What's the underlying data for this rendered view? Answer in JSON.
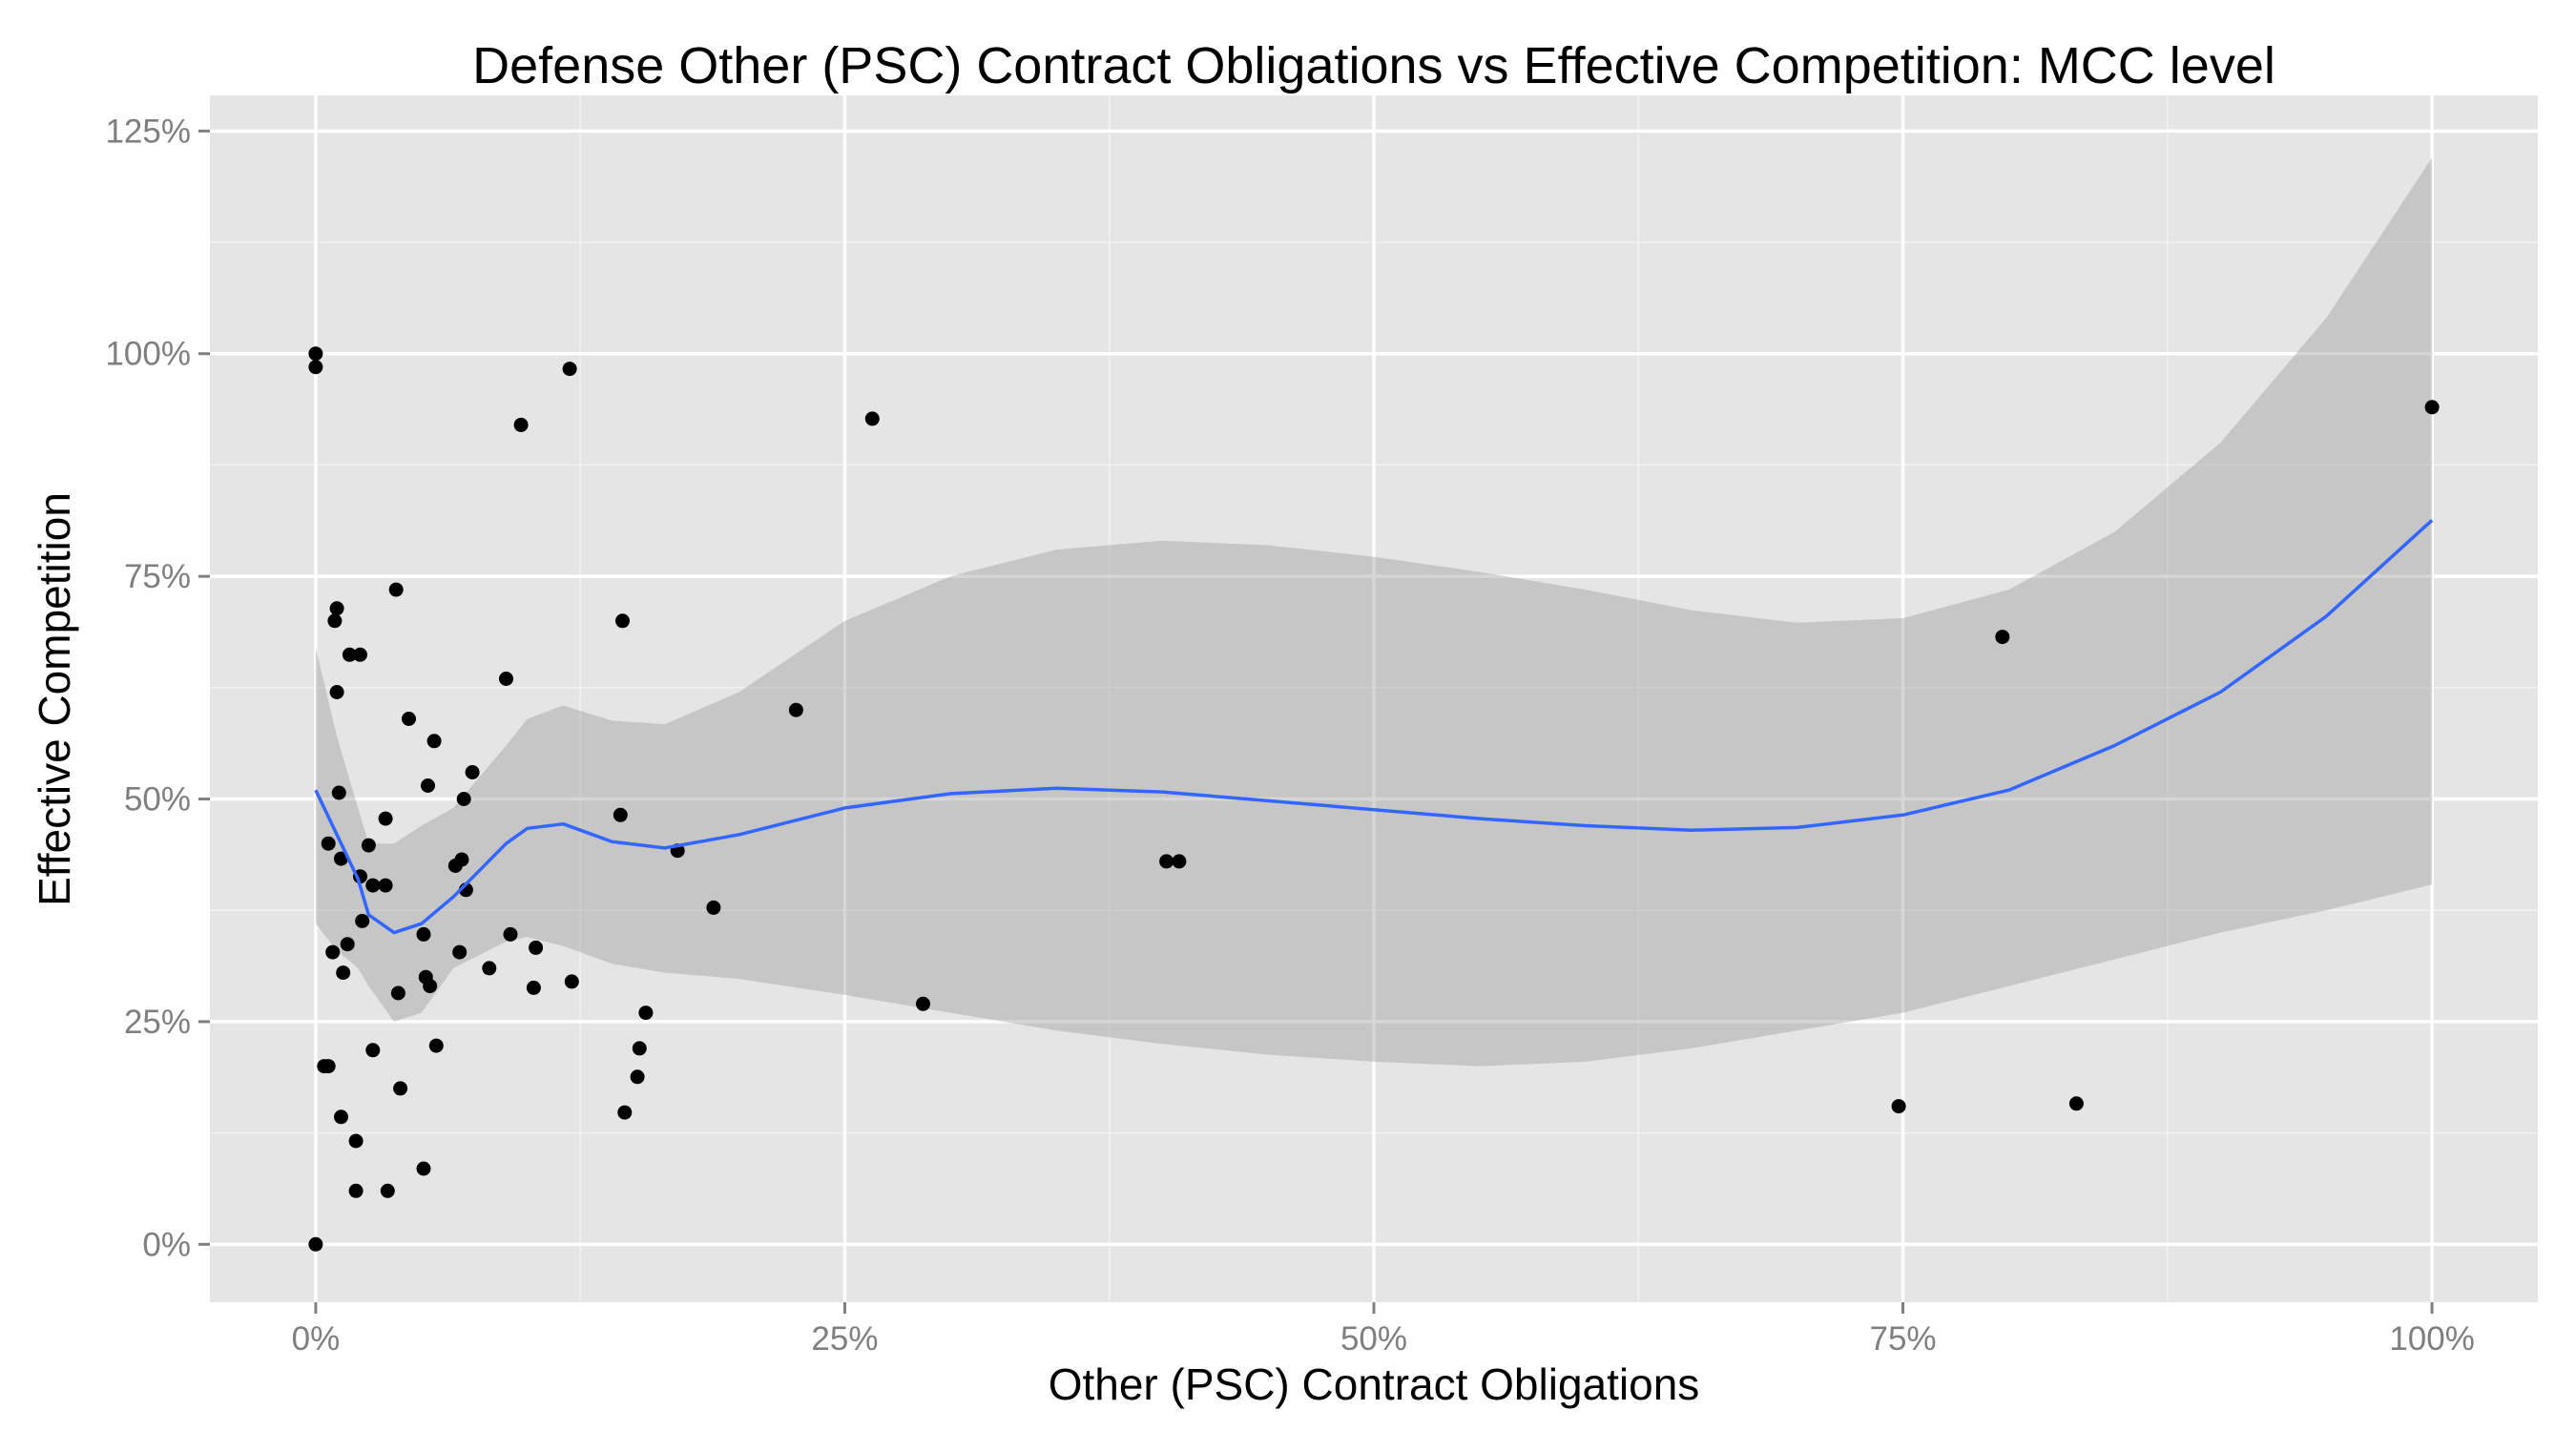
{
  "chart_data": {
    "type": "scatter",
    "title": "Defense Other (PSC) Contract Obligations vs Effective Competition: MCC level",
    "xlabel": "Other (PSC) Contract Obligations",
    "ylabel": "Effective Competition",
    "xlim": [
      -0.05,
      1.05
    ],
    "ylim": [
      -0.065,
      1.29
    ],
    "x_ticks": [
      0,
      0.25,
      0.5,
      0.75,
      1.0
    ],
    "x_tick_labels": [
      "0%",
      "25%",
      "50%",
      "75%",
      "100%"
    ],
    "y_ticks": [
      0,
      0.25,
      0.5,
      0.75,
      1.0,
      1.25
    ],
    "y_tick_labels": [
      "0%",
      "25%",
      "50%",
      "75%",
      "100%",
      "125%"
    ],
    "grid": true,
    "colors": {
      "panel": "#e5e5e5",
      "grid_major": "#ffffff",
      "grid_minor": "#f2f2f2",
      "points": "#000000",
      "smooth_line": "#3366ff",
      "ribbon": "#999999"
    },
    "points": [
      {
        "x": 0.0,
        "y": 1.0
      },
      {
        "x": 0.0,
        "y": 0.985
      },
      {
        "x": 0.0,
        "y": 0.0
      },
      {
        "x": 0.004,
        "y": 0.2
      },
      {
        "x": 0.006,
        "y": 0.2
      },
      {
        "x": 0.006,
        "y": 0.45
      },
      {
        "x": 0.008,
        "y": 0.328
      },
      {
        "x": 0.009,
        "y": 0.7
      },
      {
        "x": 0.01,
        "y": 0.714
      },
      {
        "x": 0.01,
        "y": 0.62
      },
      {
        "x": 0.011,
        "y": 0.507
      },
      {
        "x": 0.012,
        "y": 0.143
      },
      {
        "x": 0.012,
        "y": 0.433
      },
      {
        "x": 0.013,
        "y": 0.305
      },
      {
        "x": 0.015,
        "y": 0.337
      },
      {
        "x": 0.016,
        "y": 0.662
      },
      {
        "x": 0.019,
        "y": 0.116
      },
      {
        "x": 0.019,
        "y": 0.06
      },
      {
        "x": 0.021,
        "y": 0.662
      },
      {
        "x": 0.021,
        "y": 0.413
      },
      {
        "x": 0.022,
        "y": 0.363
      },
      {
        "x": 0.025,
        "y": 0.448
      },
      {
        "x": 0.027,
        "y": 0.403
      },
      {
        "x": 0.027,
        "y": 0.218
      },
      {
        "x": 0.033,
        "y": 0.478
      },
      {
        "x": 0.033,
        "y": 0.403
      },
      {
        "x": 0.034,
        "y": 0.06
      },
      {
        "x": 0.038,
        "y": 0.735
      },
      {
        "x": 0.039,
        "y": 0.282
      },
      {
        "x": 0.04,
        "y": 0.175
      },
      {
        "x": 0.044,
        "y": 0.59
      },
      {
        "x": 0.051,
        "y": 0.348
      },
      {
        "x": 0.051,
        "y": 0.085
      },
      {
        "x": 0.052,
        "y": 0.3
      },
      {
        "x": 0.053,
        "y": 0.515
      },
      {
        "x": 0.054,
        "y": 0.29
      },
      {
        "x": 0.056,
        "y": 0.565
      },
      {
        "x": 0.057,
        "y": 0.223
      },
      {
        "x": 0.066,
        "y": 0.425
      },
      {
        "x": 0.068,
        "y": 0.328
      },
      {
        "x": 0.069,
        "y": 0.432
      },
      {
        "x": 0.07,
        "y": 0.5
      },
      {
        "x": 0.071,
        "y": 0.398
      },
      {
        "x": 0.074,
        "y": 0.53
      },
      {
        "x": 0.082,
        "y": 0.31
      },
      {
        "x": 0.09,
        "y": 0.635
      },
      {
        "x": 0.092,
        "y": 0.348
      },
      {
        "x": 0.097,
        "y": 0.92
      },
      {
        "x": 0.103,
        "y": 0.288
      },
      {
        "x": 0.104,
        "y": 0.333
      },
      {
        "x": 0.12,
        "y": 0.983
      },
      {
        "x": 0.121,
        "y": 0.295
      },
      {
        "x": 0.144,
        "y": 0.482
      },
      {
        "x": 0.145,
        "y": 0.7
      },
      {
        "x": 0.146,
        "y": 0.148
      },
      {
        "x": 0.152,
        "y": 0.188
      },
      {
        "x": 0.153,
        "y": 0.22
      },
      {
        "x": 0.156,
        "y": 0.26
      },
      {
        "x": 0.171,
        "y": 0.442
      },
      {
        "x": 0.188,
        "y": 0.378
      },
      {
        "x": 0.227,
        "y": 0.6
      },
      {
        "x": 0.263,
        "y": 0.927
      },
      {
        "x": 0.287,
        "y": 0.27
      },
      {
        "x": 0.402,
        "y": 0.43
      },
      {
        "x": 0.408,
        "y": 0.43
      },
      {
        "x": 0.748,
        "y": 0.155
      },
      {
        "x": 0.797,
        "y": 0.682
      },
      {
        "x": 0.832,
        "y": 0.158
      },
      {
        "x": 1.0,
        "y": 0.94
      }
    ],
    "smooth": [
      {
        "x": 0.0,
        "y": 0.51,
        "lower": 0.36,
        "upper": 0.67
      },
      {
        "x": 0.01,
        "y": 0.46,
        "lower": 0.33,
        "upper": 0.57
      },
      {
        "x": 0.02,
        "y": 0.41,
        "lower": 0.31,
        "upper": 0.49
      },
      {
        "x": 0.025,
        "y": 0.37,
        "lower": 0.29,
        "upper": 0.45
      },
      {
        "x": 0.037,
        "y": 0.35,
        "lower": 0.25,
        "upper": 0.45
      },
      {
        "x": 0.05,
        "y": 0.36,
        "lower": 0.26,
        "upper": 0.47
      },
      {
        "x": 0.065,
        "y": 0.39,
        "lower": 0.31,
        "upper": 0.49
      },
      {
        "x": 0.09,
        "y": 0.45,
        "lower": 0.34,
        "upper": 0.56
      },
      {
        "x": 0.1,
        "y": 0.467,
        "lower": 0.345,
        "upper": 0.59
      },
      {
        "x": 0.117,
        "y": 0.472,
        "lower": 0.335,
        "upper": 0.605
      },
      {
        "x": 0.14,
        "y": 0.452,
        "lower": 0.315,
        "upper": 0.588
      },
      {
        "x": 0.165,
        "y": 0.445,
        "lower": 0.305,
        "upper": 0.584
      },
      {
        "x": 0.2,
        "y": 0.46,
        "lower": 0.298,
        "upper": 0.62
      },
      {
        "x": 0.25,
        "y": 0.49,
        "lower": 0.28,
        "upper": 0.7
      },
      {
        "x": 0.3,
        "y": 0.506,
        "lower": 0.26,
        "upper": 0.75
      },
      {
        "x": 0.35,
        "y": 0.512,
        "lower": 0.24,
        "upper": 0.78
      },
      {
        "x": 0.4,
        "y": 0.508,
        "lower": 0.225,
        "upper": 0.79
      },
      {
        "x": 0.45,
        "y": 0.498,
        "lower": 0.213,
        "upper": 0.785
      },
      {
        "x": 0.5,
        "y": 0.488,
        "lower": 0.205,
        "upper": 0.772
      },
      {
        "x": 0.55,
        "y": 0.478,
        "lower": 0.2,
        "upper": 0.755
      },
      {
        "x": 0.6,
        "y": 0.47,
        "lower": 0.205,
        "upper": 0.735
      },
      {
        "x": 0.65,
        "y": 0.465,
        "lower": 0.22,
        "upper": 0.712
      },
      {
        "x": 0.7,
        "y": 0.468,
        "lower": 0.24,
        "upper": 0.698
      },
      {
        "x": 0.75,
        "y": 0.482,
        "lower": 0.26,
        "upper": 0.703
      },
      {
        "x": 0.8,
        "y": 0.51,
        "lower": 0.29,
        "upper": 0.735
      },
      {
        "x": 0.85,
        "y": 0.56,
        "lower": 0.32,
        "upper": 0.8
      },
      {
        "x": 0.9,
        "y": 0.62,
        "lower": 0.35,
        "upper": 0.9
      },
      {
        "x": 0.95,
        "y": 0.705,
        "lower": 0.375,
        "upper": 1.04
      },
      {
        "x": 1.0,
        "y": 0.813,
        "lower": 0.404,
        "upper": 1.22
      }
    ]
  }
}
